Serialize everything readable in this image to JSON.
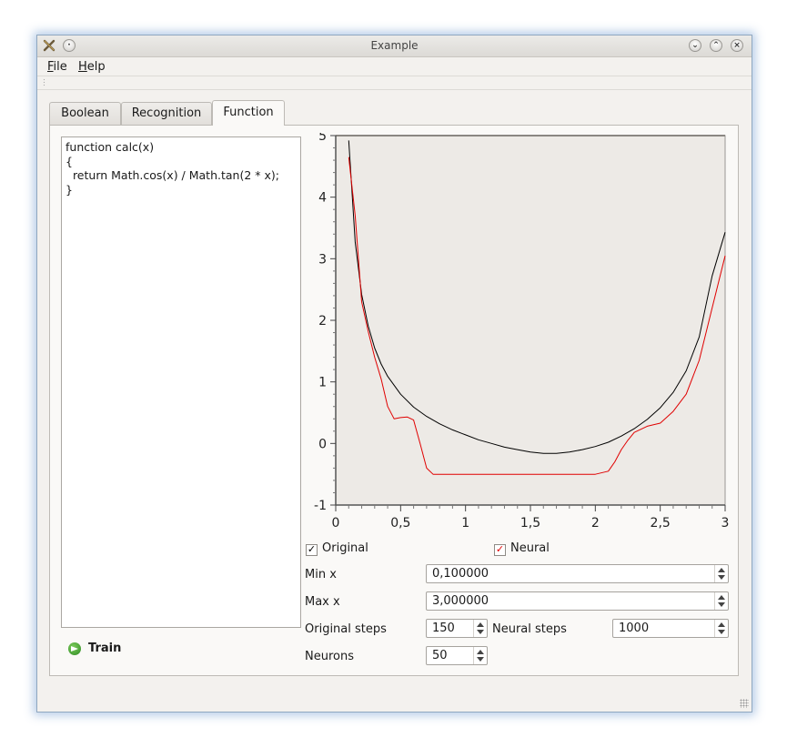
{
  "window": {
    "title": "Example"
  },
  "menu": {
    "file": "File",
    "file_rest": "ile",
    "file_u": "F",
    "help_u": "H",
    "help_rest": "elp"
  },
  "tabs": [
    {
      "label": "Boolean",
      "active": false
    },
    {
      "label": "Recognition",
      "active": false
    },
    {
      "label": "Function",
      "active": true
    }
  ],
  "code": {
    "text": "function calc(x)\n{\n  return Math.cos(x) / Math.tan(2 * x);\n}"
  },
  "train": {
    "label": "Train"
  },
  "chart_data": {
    "type": "line",
    "xlim": [
      0,
      3
    ],
    "ylim": [
      -1,
      5
    ],
    "x_ticks": [
      "0",
      "0,5",
      "1",
      "1,5",
      "2",
      "2,5",
      "3"
    ],
    "y_ticks": [
      "-1",
      "0",
      "1",
      "2",
      "3",
      "4",
      "5"
    ],
    "grid": false,
    "colors": {
      "original": "#000000",
      "neural": "#e00000",
      "background": "#edeae6"
    },
    "series": [
      {
        "name": "Original",
        "x": [
          0.1,
          0.15,
          0.2,
          0.25,
          0.3,
          0.35,
          0.4,
          0.5,
          0.6,
          0.7,
          0.8,
          0.9,
          1.0,
          1.1,
          1.2,
          1.3,
          1.4,
          1.5,
          1.6,
          1.7,
          1.8,
          1.9,
          2.0,
          2.1,
          2.2,
          2.3,
          2.4,
          2.5,
          2.6,
          2.7,
          2.8,
          2.9,
          3.0
        ],
        "y": [
          4.92,
          3.27,
          2.42,
          1.91,
          1.55,
          1.29,
          1.09,
          0.8,
          0.59,
          0.44,
          0.32,
          0.22,
          0.14,
          0.06,
          0.0,
          -0.06,
          -0.1,
          -0.14,
          -0.16,
          -0.16,
          -0.14,
          -0.1,
          -0.05,
          0.02,
          0.12,
          0.24,
          0.39,
          0.58,
          0.83,
          1.18,
          1.73,
          2.72,
          3.43
        ]
      },
      {
        "name": "Neural",
        "x": [
          0.1,
          0.15,
          0.2,
          0.25,
          0.3,
          0.35,
          0.4,
          0.45,
          0.5,
          0.55,
          0.6,
          0.65,
          0.7,
          0.75,
          0.8,
          1.0,
          1.2,
          1.4,
          1.6,
          1.8,
          2.0,
          2.1,
          2.15,
          2.2,
          2.25,
          2.3,
          2.4,
          2.5,
          2.6,
          2.7,
          2.8,
          2.9,
          3.0
        ],
        "y": [
          4.65,
          3.7,
          2.3,
          1.82,
          1.4,
          1.05,
          0.6,
          0.4,
          0.42,
          0.43,
          0.38,
          0.0,
          -0.4,
          -0.5,
          -0.5,
          -0.5,
          -0.5,
          -0.5,
          -0.5,
          -0.5,
          -0.5,
          -0.45,
          -0.3,
          -0.1,
          0.05,
          0.18,
          0.28,
          0.33,
          0.52,
          0.8,
          1.35,
          2.2,
          3.05
        ]
      }
    ]
  },
  "checks": {
    "original": "Original",
    "neural": "Neural"
  },
  "fields": {
    "min_x_label": "Min x",
    "min_x": "0,100000",
    "max_x_label": "Max x",
    "max_x": "3,000000",
    "orig_steps_label": "Original steps",
    "orig_steps": "150",
    "neural_steps_label": "Neural steps",
    "neural_steps": "1000",
    "neurons_label": "Neurons",
    "neurons": "50"
  }
}
